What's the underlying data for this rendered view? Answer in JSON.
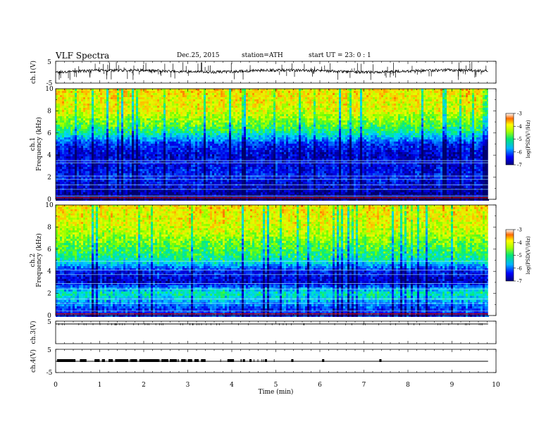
{
  "header": {
    "title": "VLF  Spectra",
    "date": "Dec.25, 2015",
    "station": "station=ATH",
    "start": "start  UT  =    23: 0   : 1"
  },
  "chart_data": {
    "type": "heatmap",
    "xlabel": "Time  (min)",
    "xlim": [
      0,
      10
    ],
    "xticks": [
      "0",
      "1",
      "2",
      "3",
      "4",
      "5",
      "6",
      "7",
      "8",
      "9",
      "10"
    ],
    "panels": [
      {
        "id": "ch1-wave",
        "ylabel": "ch.1(V)",
        "ylim": [
          -5,
          5
        ],
        "yticks": [
          "5",
          "-5"
        ]
      },
      {
        "id": "ch1-spec",
        "ylabel_top": "ch.1",
        "ylabel": "Frequency  (kHz)",
        "ylim": [
          0,
          10
        ],
        "yticks": [
          "0",
          "2",
          "4",
          "6",
          "8",
          "10"
        ],
        "colorbar": {
          "label": "log(PSD(V²/Hz)",
          "range": [
            -7,
            -3
          ],
          "ticks": [
            "-3",
            "-4",
            "-5",
            "-6",
            "-7"
          ]
        }
      },
      {
        "id": "ch2-spec",
        "ylabel_top": "ch.2",
        "ylabel": "Frequency  (kHz)",
        "ylim": [
          0,
          10
        ],
        "yticks": [
          "0",
          "2",
          "4",
          "6",
          "8",
          "10"
        ],
        "colorbar": {
          "label": "log(PSD(V²/Hz)",
          "range": [
            -7,
            -3
          ],
          "ticks": [
            "-3",
            "-4",
            "-5",
            "-6",
            "-7"
          ]
        }
      },
      {
        "id": "ch3-wave",
        "ylabel": "ch.3(V)",
        "ylim": [
          -5,
          5
        ],
        "yticks": [
          "5"
        ]
      },
      {
        "id": "ch4-wave",
        "ylabel": "ch.4(V)",
        "ylim": [
          -5,
          5
        ],
        "yticks": [
          "5",
          "-5"
        ]
      }
    ],
    "data_end_min": 9.82,
    "spectral_profile_log_psd": [
      {
        "freq_khz": 0.5,
        "ch1": -6.8,
        "ch2": -6.3
      },
      {
        "freq_khz": 2,
        "ch1": -6.4,
        "ch2": -5.3
      },
      {
        "freq_khz": 3,
        "ch1": -6.5,
        "ch2": -6.6
      },
      {
        "freq_khz": 4,
        "ch1": -6.6,
        "ch2": -6.4
      },
      {
        "freq_khz": 5,
        "ch1": -6.3,
        "ch2": -5.3
      },
      {
        "freq_khz": 6,
        "ch1": -5.3,
        "ch2": -5.0
      },
      {
        "freq_khz": 7,
        "ch1": -4.8,
        "ch2": -4.7
      },
      {
        "freq_khz": 8,
        "ch1": -4.4,
        "ch2": -4.4
      },
      {
        "freq_khz": 9,
        "ch1": -4.3,
        "ch2": -4.3
      },
      {
        "freq_khz": 10,
        "ch1": -4.2,
        "ch2": -4.2
      }
    ]
  }
}
